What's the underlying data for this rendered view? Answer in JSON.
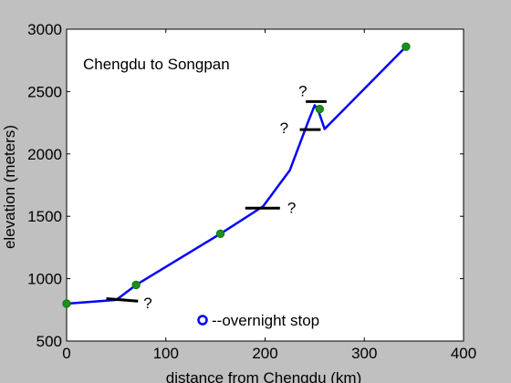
{
  "chart_data": {
    "type": "line",
    "annotation_title": "Chengdu to Songpan",
    "xlabel": "distance from Chengdu (km)",
    "ylabel": "elevation (meters)",
    "xlim": [
      0,
      400
    ],
    "ylim": [
      500,
      3000
    ],
    "xticks": [
      0,
      100,
      200,
      300,
      400
    ],
    "yticks": [
      500,
      1000,
      1500,
      2000,
      2500,
      3000
    ],
    "xtick_labels": [
      "0",
      "100",
      "200",
      "300",
      "400"
    ],
    "ytick_labels": [
      "500",
      "1000",
      "1500",
      "2000",
      "2500",
      "3000"
    ],
    "grid": false,
    "legend": {
      "label": "--overnight stop",
      "placement": "bottom-center"
    },
    "colors": {
      "route": "#0000ff",
      "stop_fill": "#228b22",
      "stop_edge": "#008000",
      "uncertain_mark": "#000000",
      "legend_marker": "#0000ff",
      "figure_bg": "#c0c0c0",
      "axes_bg": "#ffffff"
    },
    "route": {
      "x": [
        0,
        50,
        70,
        155,
        198,
        225,
        243,
        250,
        254,
        260,
        342
      ],
      "y": [
        800,
        830,
        950,
        1360,
        1580,
        1870,
        2250,
        2390,
        2340,
        2200,
        2860
      ]
    },
    "overnight_stops": {
      "x": [
        0,
        70,
        155,
        255,
        342
      ],
      "y": [
        800,
        950,
        1360,
        2360,
        2860
      ]
    },
    "uncertain_segments": [
      {
        "x": [
          40,
          72
        ],
        "y": [
          840,
          820
        ],
        "label": "?"
      },
      {
        "x": [
          180,
          215
        ],
        "y": [
          1565,
          1565
        ],
        "label": "?"
      },
      {
        "x": [
          235,
          256
        ],
        "y": [
          2195,
          2195
        ],
        "label": "?"
      },
      {
        "x": [
          241,
          262
        ],
        "y": [
          2420,
          2420
        ],
        "label": "?"
      }
    ]
  }
}
